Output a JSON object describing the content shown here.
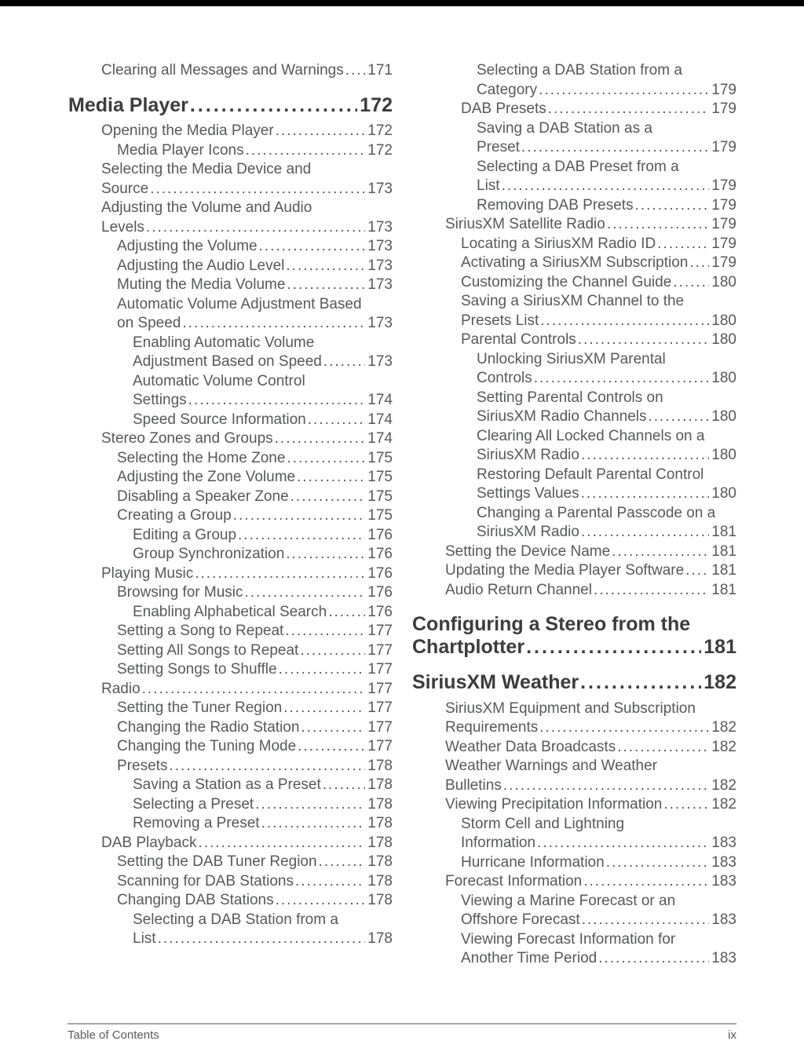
{
  "styles": {
    "text_color": "#57585a",
    "heading_color": "#3c3c3e",
    "footer_color": "#58595b",
    "rule_color": "#a6a6a6",
    "topbar_color": "#000000"
  },
  "footer": {
    "left": "Table of Contents",
    "right": "ix"
  },
  "toc": {
    "columns": [
      {
        "entries": [
          {
            "level": 1,
            "lines": [
              "Clearing all Messages and Warnings"
            ],
            "page": "171"
          },
          {
            "heading": true,
            "lines": [
              "Media Player"
            ],
            "page": "172"
          },
          {
            "level": 1,
            "lines": [
              "Opening the Media Player"
            ],
            "page": "172"
          },
          {
            "level": 2,
            "lines": [
              "Media Player Icons"
            ],
            "page": "172"
          },
          {
            "level": 1,
            "lines": [
              "Selecting the Media Device and",
              "Source"
            ],
            "page": "173"
          },
          {
            "level": 1,
            "lines": [
              "Adjusting the Volume and Audio",
              "Levels"
            ],
            "page": "173"
          },
          {
            "level": 2,
            "lines": [
              "Adjusting the Volume"
            ],
            "page": "173"
          },
          {
            "level": 2,
            "lines": [
              "Adjusting the Audio Level"
            ],
            "page": "173"
          },
          {
            "level": 2,
            "lines": [
              "Muting the Media Volume"
            ],
            "page": "173"
          },
          {
            "level": 2,
            "lines": [
              "Automatic Volume Adjustment Based",
              "on Speed"
            ],
            "page": "173"
          },
          {
            "level": 3,
            "lines": [
              "Enabling Automatic Volume",
              "Adjustment Based on Speed"
            ],
            "page": "173"
          },
          {
            "level": 3,
            "lines": [
              "Automatic Volume Control",
              "Settings"
            ],
            "page": "174"
          },
          {
            "level": 3,
            "lines": [
              "Speed Source Information"
            ],
            "page": "174"
          },
          {
            "level": 1,
            "lines": [
              "Stereo Zones and Groups"
            ],
            "page": "174"
          },
          {
            "level": 2,
            "lines": [
              "Selecting the Home Zone"
            ],
            "page": "175"
          },
          {
            "level": 2,
            "lines": [
              "Adjusting the Zone Volume"
            ],
            "page": "175"
          },
          {
            "level": 2,
            "lines": [
              "Disabling a Speaker Zone"
            ],
            "page": "175"
          },
          {
            "level": 2,
            "lines": [
              "Creating a Group"
            ],
            "page": "175"
          },
          {
            "level": 3,
            "lines": [
              "Editing a Group"
            ],
            "page": "176"
          },
          {
            "level": 3,
            "lines": [
              "Group Synchronization"
            ],
            "page": "176"
          },
          {
            "level": 1,
            "lines": [
              "Playing Music"
            ],
            "page": "176"
          },
          {
            "level": 2,
            "lines": [
              "Browsing for Music"
            ],
            "page": "176"
          },
          {
            "level": 3,
            "lines": [
              "Enabling Alphabetical Search"
            ],
            "page": "176"
          },
          {
            "level": 2,
            "lines": [
              "Setting a Song to Repeat"
            ],
            "page": "177"
          },
          {
            "level": 2,
            "lines": [
              "Setting All Songs to Repeat"
            ],
            "page": "177"
          },
          {
            "level": 2,
            "lines": [
              "Setting Songs to Shuffle"
            ],
            "page": "177"
          },
          {
            "level": 1,
            "lines": [
              "Radio"
            ],
            "page": "177"
          },
          {
            "level": 2,
            "lines": [
              "Setting the Tuner Region"
            ],
            "page": "177"
          },
          {
            "level": 2,
            "lines": [
              "Changing the Radio Station"
            ],
            "page": "177"
          },
          {
            "level": 2,
            "lines": [
              "Changing the Tuning Mode"
            ],
            "page": "177"
          },
          {
            "level": 2,
            "lines": [
              "Presets"
            ],
            "page": "178"
          },
          {
            "level": 3,
            "lines": [
              "Saving a Station as a Preset"
            ],
            "page": "178"
          },
          {
            "level": 3,
            "lines": [
              "Selecting a Preset"
            ],
            "page": "178"
          },
          {
            "level": 3,
            "lines": [
              "Removing a Preset"
            ],
            "page": "178"
          },
          {
            "level": 1,
            "lines": [
              "DAB Playback"
            ],
            "page": "178"
          },
          {
            "level": 2,
            "lines": [
              "Setting the DAB Tuner Region"
            ],
            "page": "178"
          },
          {
            "level": 2,
            "lines": [
              "Scanning for DAB Stations"
            ],
            "page": "178"
          },
          {
            "level": 2,
            "lines": [
              "Changing DAB Stations"
            ],
            "page": "178"
          },
          {
            "level": 3,
            "lines": [
              "Selecting a DAB Station from a",
              "List"
            ],
            "page": "178"
          }
        ]
      },
      {
        "entries": [
          {
            "level": 3,
            "lines": [
              "Selecting a DAB Station from a",
              "Category"
            ],
            "page": "179"
          },
          {
            "level": 2,
            "lines": [
              "DAB Presets"
            ],
            "page": "179"
          },
          {
            "level": 3,
            "lines": [
              "Saving a DAB Station as a",
              "Preset"
            ],
            "page": "179"
          },
          {
            "level": 3,
            "lines": [
              "Selecting a DAB Preset from a",
              "List"
            ],
            "page": "179"
          },
          {
            "level": 3,
            "lines": [
              "Removing DAB Presets"
            ],
            "page": "179"
          },
          {
            "level": 1,
            "lines": [
              "SiriusXM Satellite Radio"
            ],
            "page": "179"
          },
          {
            "level": 2,
            "lines": [
              "Locating a SiriusXM Radio ID"
            ],
            "page": "179"
          },
          {
            "level": 2,
            "lines": [
              "Activating a SiriusXM Subscription"
            ],
            "page": "179"
          },
          {
            "level": 2,
            "lines": [
              "Customizing the Channel Guide"
            ],
            "page": "180"
          },
          {
            "level": 2,
            "lines": [
              "Saving a SiriusXM Channel to the",
              "Presets List"
            ],
            "page": "180"
          },
          {
            "level": 2,
            "lines": [
              "Parental Controls"
            ],
            "page": "180"
          },
          {
            "level": 3,
            "lines": [
              "Unlocking SiriusXM Parental",
              "Controls"
            ],
            "page": "180"
          },
          {
            "level": 3,
            "lines": [
              "Setting Parental Controls on",
              "SiriusXM Radio Channels"
            ],
            "page": "180"
          },
          {
            "level": 3,
            "lines": [
              "Clearing All Locked Channels on a",
              "SiriusXM Radio"
            ],
            "page": "180"
          },
          {
            "level": 3,
            "lines": [
              "Restoring Default Parental Control",
              "Settings Values"
            ],
            "page": "180"
          },
          {
            "level": 3,
            "lines": [
              "Changing a Parental Passcode on a",
              "SiriusXM Radio"
            ],
            "page": "181"
          },
          {
            "level": 1,
            "lines": [
              "Setting the Device Name"
            ],
            "page": "181"
          },
          {
            "level": 1,
            "lines": [
              "Updating the Media Player Software"
            ],
            "page": "181"
          },
          {
            "level": 1,
            "lines": [
              "Audio Return Channel"
            ],
            "page": "181"
          },
          {
            "heading": true,
            "lines": [
              "Configuring a Stereo from the",
              "Chartplotter"
            ],
            "page": "181"
          },
          {
            "heading": true,
            "lines": [
              "SiriusXM Weather"
            ],
            "page": "182"
          },
          {
            "level": 1,
            "lines": [
              "SiriusXM Equipment and Subscription",
              "Requirements"
            ],
            "page": "182"
          },
          {
            "level": 1,
            "lines": [
              "Weather Data Broadcasts"
            ],
            "page": "182"
          },
          {
            "level": 1,
            "lines": [
              "Weather Warnings and Weather",
              "Bulletins"
            ],
            "page": "182"
          },
          {
            "level": 1,
            "lines": [
              "Viewing Precipitation Information"
            ],
            "page": "182"
          },
          {
            "level": 2,
            "lines": [
              "Storm Cell and Lightning",
              "Information"
            ],
            "page": "183"
          },
          {
            "level": 2,
            "lines": [
              "Hurricane Information"
            ],
            "page": "183"
          },
          {
            "level": 1,
            "lines": [
              "Forecast Information"
            ],
            "page": "183"
          },
          {
            "level": 2,
            "lines": [
              "Viewing a Marine Forecast or an",
              "Offshore Forecast"
            ],
            "page": "183"
          },
          {
            "level": 2,
            "lines": [
              "Viewing Forecast Information for",
              "Another Time Period"
            ],
            "page": "183"
          }
        ]
      }
    ]
  }
}
